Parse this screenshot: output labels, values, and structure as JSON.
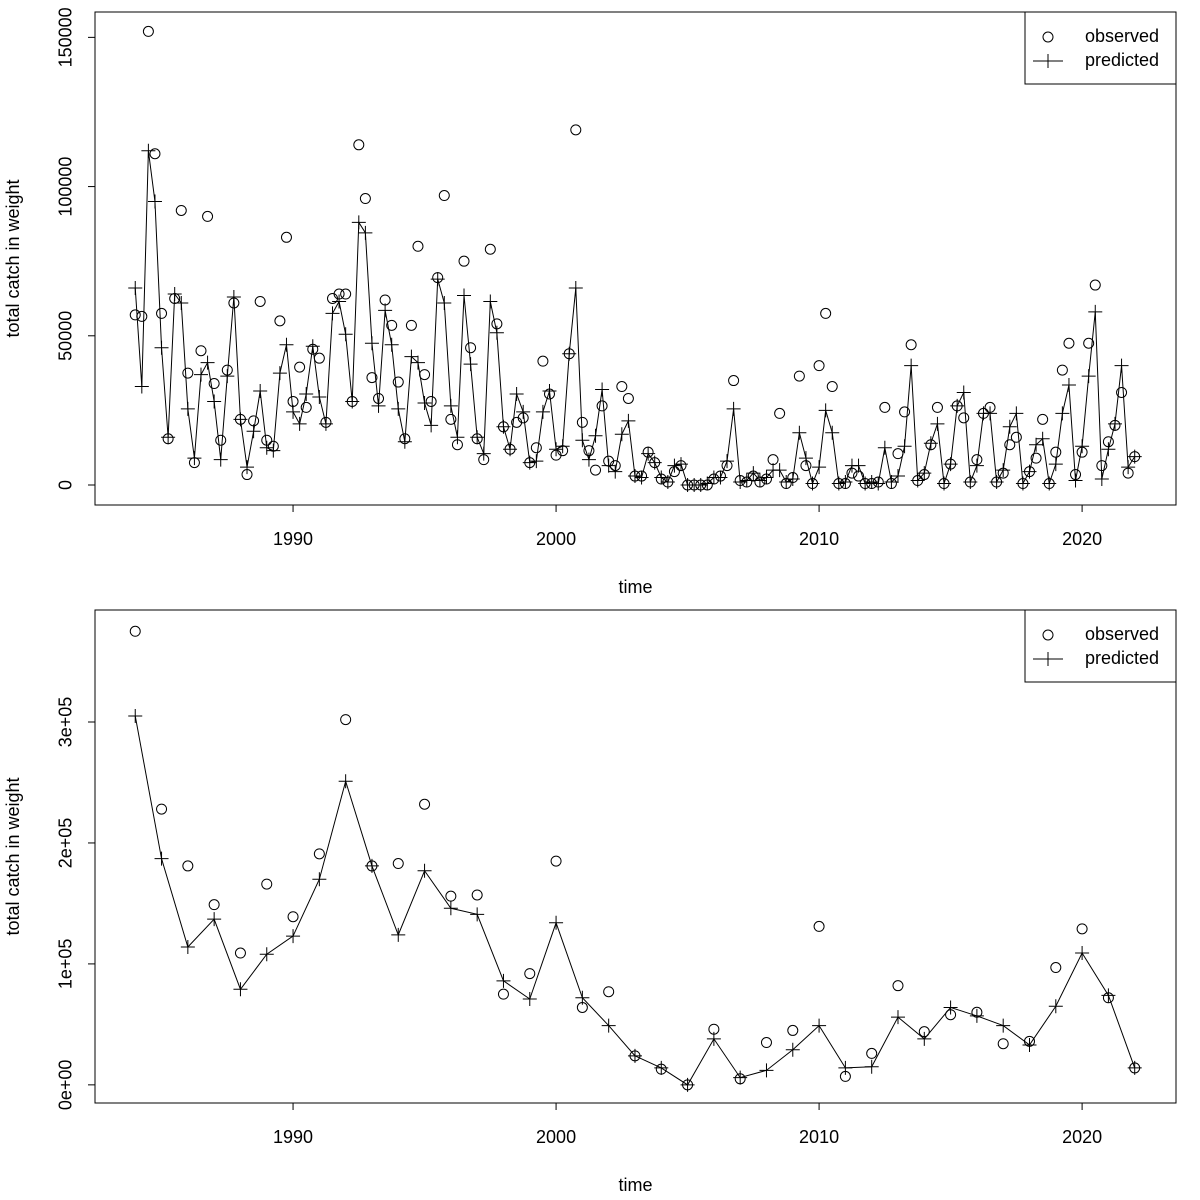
{
  "chart_data": [
    {
      "type": "line",
      "xlabel": "time",
      "ylabel": "total catch in weight",
      "xlim": [
        1982.47,
        2023.57
      ],
      "ylim": [
        -6700,
        158500
      ],
      "xticks": [
        1990,
        2000,
        2010,
        2020
      ],
      "yticks": [
        0,
        50000,
        100000,
        150000
      ],
      "legend": "top-right",
      "x": [
        1984,
        1984.25,
        1984.5,
        1984.75,
        1985,
        1985.25,
        1985.5,
        1985.75,
        1986,
        1986.25,
        1986.5,
        1986.75,
        1987,
        1987.25,
        1987.5,
        1987.75,
        1988,
        1988.25,
        1988.5,
        1988.75,
        1989,
        1989.25,
        1989.5,
        1989.75,
        1990,
        1990.25,
        1990.5,
        1990.75,
        1991,
        1991.25,
        1991.5,
        1991.75,
        1992,
        1992.25,
        1992.5,
        1992.75,
        1993,
        1993.25,
        1993.5,
        1993.75,
        1994,
        1994.25,
        1994.5,
        1994.75,
        1995,
        1995.25,
        1995.5,
        1995.75,
        1996,
        1996.25,
        1996.5,
        1996.75,
        1997,
        1997.25,
        1997.5,
        1997.75,
        1998,
        1998.25,
        1998.5,
        1998.75,
        1999,
        1999.25,
        1999.5,
        1999.75,
        2000,
        2000.25,
        2000.5,
        2000.75,
        2001,
        2001.25,
        2001.5,
        2001.75,
        2002,
        2002.25,
        2002.5,
        2002.75,
        2003,
        2003.25,
        2003.5,
        2003.75,
        2004,
        2004.25,
        2004.5,
        2004.75,
        2005,
        2005.25,
        2005.5,
        2005.75,
        2006,
        2006.25,
        2006.5,
        2006.75,
        2007,
        2007.25,
        2007.5,
        2007.75,
        2008,
        2008.25,
        2008.5,
        2008.75,
        2009,
        2009.25,
        2009.5,
        2009.75,
        2010,
        2010.25,
        2010.5,
        2010.75,
        2011,
        2011.25,
        2011.5,
        2011.75,
        2012,
        2012.25,
        2012.5,
        2012.75,
        2013,
        2013.25,
        2013.5,
        2013.75,
        2014,
        2014.25,
        2014.5,
        2014.75,
        2015,
        2015.25,
        2015.5,
        2015.75,
        2016,
        2016.25,
        2016.5,
        2016.75,
        2017,
        2017.25,
        2017.5,
        2017.75,
        2018,
        2018.25,
        2018.5,
        2018.75,
        2019,
        2019.25,
        2019.5,
        2019.75,
        2020,
        2020.25,
        2020.5,
        2020.75,
        2021,
        2021.25,
        2021.5,
        2021.75,
        2022
      ],
      "series": [
        {
          "name": "observed",
          "color": "#000000",
          "marker": "circle",
          "line": false,
          "values": [
            57000,
            56500,
            152000,
            111000,
            57500,
            15500,
            62500,
            92000,
            37500,
            7500,
            45000,
            90000,
            34000,
            15000,
            38500,
            61000,
            22000,
            3500,
            21500,
            61500,
            15000,
            13000,
            55000,
            83000,
            28000,
            39500,
            26000,
            45500,
            42500,
            21000,
            62500,
            64000,
            64000,
            28000,
            114000,
            96000,
            36000,
            29000,
            62000,
            53500,
            34500,
            15500,
            53500,
            80000,
            37000,
            28000,
            69500,
            97000,
            22000,
            13500,
            75000,
            46000,
            15500,
            8500,
            79000,
            54000,
            19500,
            12000,
            21000,
            22500,
            7500,
            12500,
            41500,
            30500,
            10000,
            11500,
            44000,
            119000,
            21000,
            11500,
            5000,
            26500,
            8000,
            6500,
            33000,
            29000,
            3000,
            3000,
            11000,
            7500,
            2000,
            1000,
            4500,
            6500,
            0,
            0,
            0,
            0,
            2000,
            3000,
            6500,
            35000,
            1500,
            1000,
            3000,
            1000,
            2000,
            8500,
            24000,
            500,
            2500,
            36500,
            6500,
            500,
            40000,
            57500,
            33000,
            500,
            500,
            4000,
            3000,
            500,
            500,
            1000,
            26000,
            500,
            10500,
            24500,
            47000,
            1500,
            3500,
            13500,
            26000,
            500,
            7000,
            26500,
            22500,
            1000,
            8500,
            24000,
            26000,
            1000,
            4000,
            13500,
            16000,
            500,
            4500,
            9000,
            22000,
            500,
            11000,
            38500,
            47500,
            3500,
            11000,
            47500,
            67000,
            6500,
            14500,
            20000,
            31000,
            4000,
            9500
          ]
        },
        {
          "name": "predicted",
          "color": "#000000",
          "marker": "plus",
          "line": true,
          "values": [
            66000,
            33000,
            112000,
            95000,
            46000,
            16000,
            64000,
            61000,
            25500,
            9000,
            37000,
            41000,
            28000,
            8500,
            36500,
            63000,
            22000,
            6000,
            18000,
            31500,
            12500,
            11500,
            37500,
            47000,
            24500,
            20500,
            30500,
            46500,
            29500,
            20500,
            57500,
            61500,
            50500,
            28000,
            88000,
            84500,
            47500,
            26500,
            58500,
            47000,
            25500,
            14500,
            43000,
            41000,
            27500,
            20000,
            69000,
            61000,
            26500,
            16000,
            63500,
            40500,
            16000,
            10500,
            61500,
            51000,
            19500,
            12000,
            30500,
            24500,
            7500,
            8000,
            24500,
            31500,
            12000,
            13000,
            44000,
            66000,
            15000,
            8500,
            16500,
            32000,
            6500,
            4500,
            17000,
            21500,
            3000,
            2500,
            10500,
            7500,
            2500,
            1000,
            6500,
            7000,
            0,
            0,
            0,
            500,
            2500,
            2500,
            8000,
            25500,
            1000,
            1500,
            4000,
            1500,
            2500,
            5000,
            5000,
            1000,
            2000,
            17500,
            9000,
            500,
            6000,
            25000,
            17500,
            500,
            1000,
            6500,
            6500,
            500,
            1000,
            500,
            12500,
            1000,
            3000,
            13000,
            40000,
            1500,
            4000,
            14000,
            20500,
            500,
            7000,
            26500,
            31000,
            1000,
            6500,
            24000,
            24000,
            1000,
            5000,
            19500,
            24000,
            500,
            4500,
            13500,
            15500,
            500,
            7000,
            24000,
            33500,
            1500,
            13000,
            36500,
            58000,
            2000,
            12000,
            20500,
            40000,
            6000,
            9500
          ]
        }
      ]
    },
    {
      "type": "line",
      "xlabel": "time",
      "ylabel": "total catch in weight",
      "xlim": [
        1982.47,
        2023.57
      ],
      "ylim": [
        -15000,
        392600
      ],
      "xticks": [
        1990,
        2000,
        2010,
        2020
      ],
      "yticks": [
        {
          "value": 0,
          "label": "0e+00"
        },
        {
          "value": 100000,
          "label": "1e+05"
        },
        {
          "value": 200000,
          "label": "2e+05"
        },
        {
          "value": 300000,
          "label": "3e+05"
        }
      ],
      "legend": "top-right",
      "x": [
        1984,
        1985,
        1986,
        1987,
        1988,
        1989,
        1990,
        1991,
        1992,
        1993,
        1994,
        1995,
        1996,
        1997,
        1998,
        1999,
        2000,
        2001,
        2002,
        2003,
        2004,
        2005,
        2006,
        2007,
        2008,
        2009,
        2010,
        2011,
        2012,
        2013,
        2014,
        2015,
        2016,
        2017,
        2018,
        2019,
        2020,
        2021,
        2022
      ],
      "series": [
        {
          "name": "observed",
          "color": "#000000",
          "marker": "circle",
          "line": false,
          "values": [
            375000,
            228000,
            181000,
            149000,
            109000,
            166000,
            139000,
            191000,
            302000,
            181000,
            183000,
            232000,
            156000,
            157000,
            75000,
            92000,
            185000,
            64000,
            77000,
            24000,
            13000,
            0,
            46000,
            5000,
            35000,
            45000,
            131000,
            7000,
            26000,
            82000,
            44000,
            58000,
            60000,
            34000,
            36000,
            97000,
            129000,
            72000,
            14000
          ]
        },
        {
          "name": "predicted",
          "color": "#000000",
          "marker": "plus",
          "line": true,
          "values": [
            305000,
            187000,
            114000,
            137000,
            79000,
            108000,
            123000,
            170000,
            251000,
            181000,
            124000,
            177000,
            146000,
            141000,
            86000,
            71000,
            134000,
            72000,
            49000,
            24000,
            14000,
            0,
            38000,
            6000,
            12000,
            29000,
            49000,
            14000,
            15000,
            56000,
            38000,
            64000,
            57000,
            49000,
            33000,
            65000,
            109000,
            74000,
            14000
          ]
        }
      ]
    }
  ]
}
